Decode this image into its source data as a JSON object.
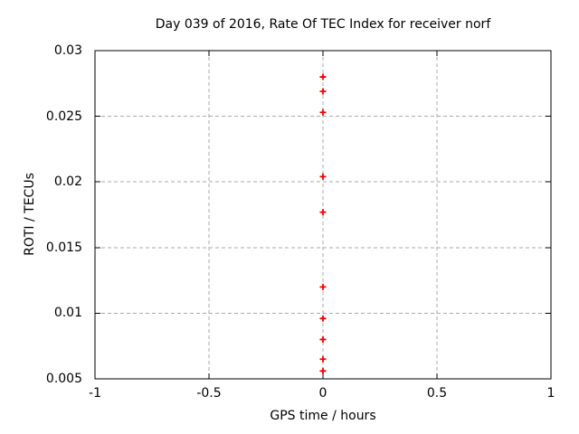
{
  "chart_data": {
    "type": "scatter",
    "title": "Day 039 of 2016, Rate Of TEC Index for receiver norf",
    "xlabel": "GPS time / hours",
    "ylabel": "ROTI / TECUs",
    "xlim": [
      -1,
      1
    ],
    "ylim": [
      0.005,
      0.03
    ],
    "grid": true,
    "legend_position": "none",
    "xticks": [
      {
        "v": -1,
        "label": "-1"
      },
      {
        "v": -0.5,
        "label": "-0.5"
      },
      {
        "v": 0,
        "label": "0"
      },
      {
        "v": 0.5,
        "label": "0.5"
      },
      {
        "v": 1,
        "label": "1"
      }
    ],
    "yticks": [
      {
        "v": 0.005,
        "label": "0.005"
      },
      {
        "v": 0.01,
        "label": "0.01"
      },
      {
        "v": 0.015,
        "label": "0.015"
      },
      {
        "v": 0.02,
        "label": "0.02"
      },
      {
        "v": 0.025,
        "label": "0.025"
      },
      {
        "v": 0.03,
        "label": "0.03"
      }
    ],
    "series": [
      {
        "name": "ROTI",
        "marker": "plus",
        "color": "#ee0000",
        "points": [
          {
            "x": 0,
            "y": 0.028
          },
          {
            "x": 0,
            "y": 0.0269
          },
          {
            "x": 0,
            "y": 0.0253
          },
          {
            "x": 0,
            "y": 0.0204
          },
          {
            "x": 0,
            "y": 0.0177
          },
          {
            "x": 0,
            "y": 0.012
          },
          {
            "x": 0,
            "y": 0.0096
          },
          {
            "x": 0,
            "y": 0.008
          },
          {
            "x": 0,
            "y": 0.0065
          },
          {
            "x": 0,
            "y": 0.0056
          }
        ]
      }
    ],
    "colors": {
      "background": "#ffffff",
      "border": "#000000",
      "grid": "#a8a8a8",
      "text": "#000000"
    }
  }
}
